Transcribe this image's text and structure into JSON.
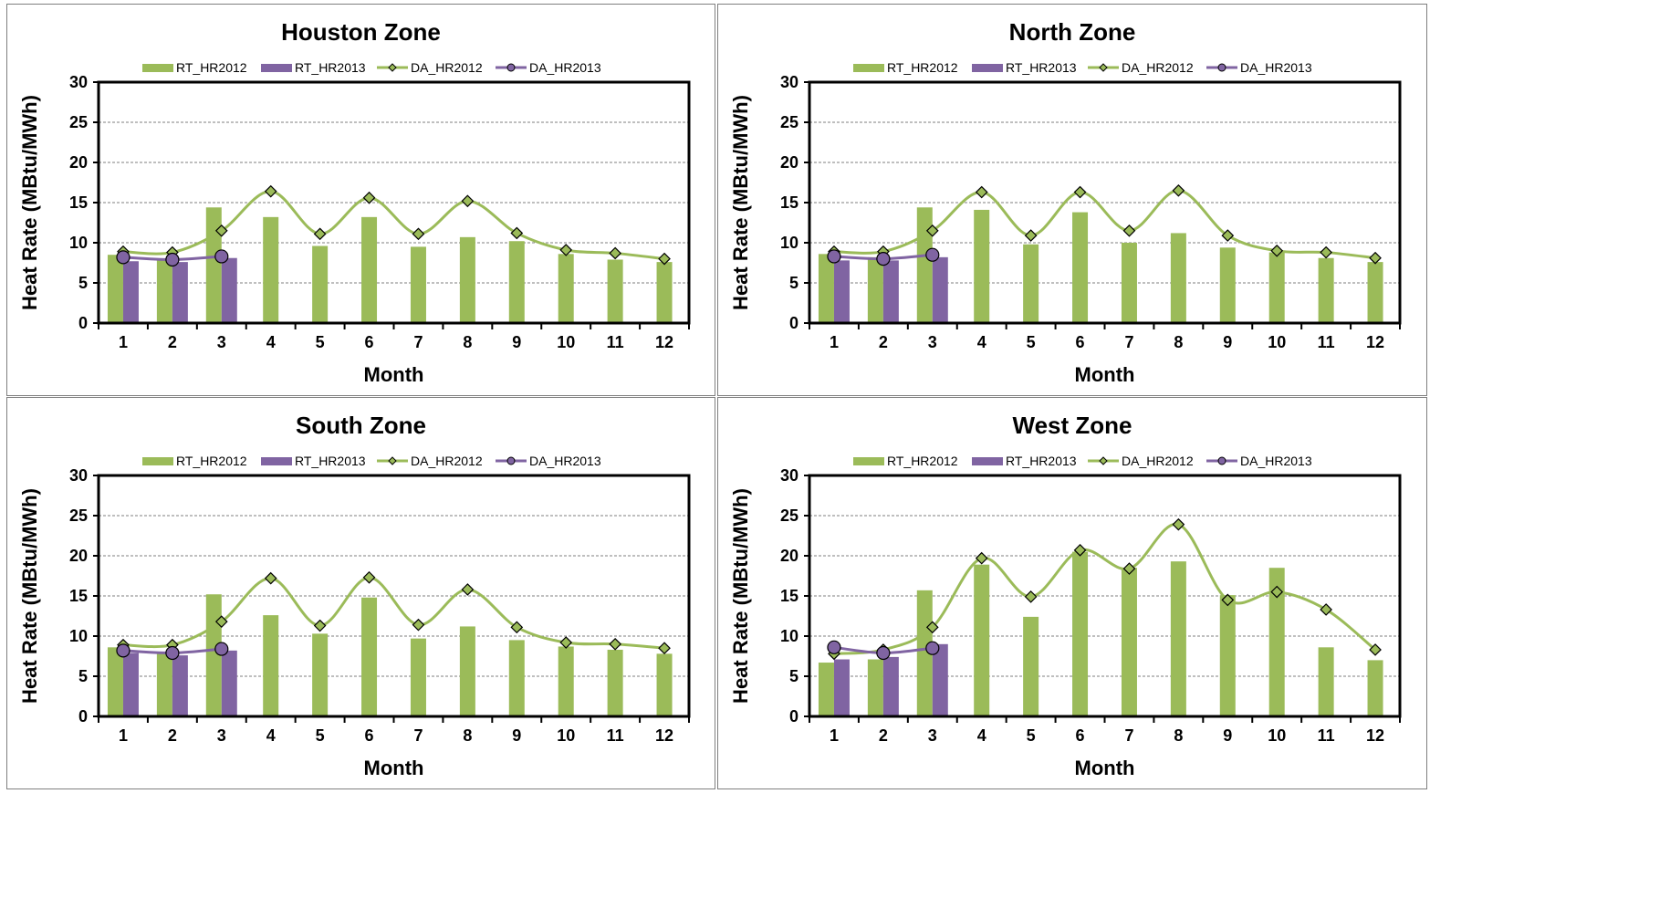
{
  "colors": {
    "green": "#9bbb59",
    "purple": "#8064a2",
    "grid": "#7f7f7f",
    "border": "#7f7f7f"
  },
  "chart_data": [
    {
      "type": "bar",
      "title": "Houston Zone",
      "xlabel": "Month",
      "ylabel": "Heat Rate (MBtu/MWh)",
      "categories": [
        "1",
        "2",
        "3",
        "4",
        "5",
        "6",
        "7",
        "8",
        "9",
        "10",
        "11",
        "12"
      ],
      "ylim": [
        0,
        30
      ],
      "yticks": [
        "0",
        "5",
        "10",
        "15",
        "20",
        "25",
        "30"
      ],
      "grid": "horizontal dashed",
      "legend": "top",
      "series": [
        {
          "name": "RT_HR2012",
          "kind": "bar",
          "values": [
            8.5,
            8.0,
            14.4,
            13.2,
            9.6,
            13.2,
            9.5,
            10.7,
            10.2,
            8.6,
            7.9,
            7.6
          ]
        },
        {
          "name": "RT_HR2013",
          "kind": "bar",
          "values": [
            7.7,
            7.6,
            8.1,
            null,
            null,
            null,
            null,
            null,
            null,
            null,
            null,
            null
          ]
        },
        {
          "name": "DA_HR2012",
          "kind": "line",
          "marker": "diamond",
          "values": [
            8.9,
            8.8,
            11.5,
            16.4,
            11.1,
            15.6,
            11.1,
            15.2,
            11.2,
            9.1,
            8.7,
            8.0
          ]
        },
        {
          "name": "DA_HR2013",
          "kind": "line",
          "marker": "circle",
          "values": [
            8.2,
            7.9,
            8.3,
            null,
            null,
            null,
            null,
            null,
            null,
            null,
            null,
            null
          ]
        }
      ]
    },
    {
      "type": "bar",
      "title": "North Zone",
      "xlabel": "Month",
      "ylabel": "Heat Rate (MBtu/MWh)",
      "categories": [
        "1",
        "2",
        "3",
        "4",
        "5",
        "6",
        "7",
        "8",
        "9",
        "10",
        "11",
        "12"
      ],
      "ylim": [
        0,
        30
      ],
      "yticks": [
        "0",
        "5",
        "10",
        "15",
        "20",
        "25",
        "30"
      ],
      "grid": "horizontal dashed",
      "legend": "top",
      "series": [
        {
          "name": "RT_HR2012",
          "kind": "bar",
          "values": [
            8.6,
            8.2,
            14.4,
            14.1,
            9.8,
            13.8,
            10.0,
            11.2,
            9.4,
            8.8,
            8.1,
            7.6
          ]
        },
        {
          "name": "RT_HR2013",
          "kind": "bar",
          "values": [
            7.8,
            7.8,
            8.2,
            null,
            null,
            null,
            null,
            null,
            null,
            null,
            null,
            null
          ]
        },
        {
          "name": "DA_HR2012",
          "kind": "line",
          "marker": "diamond",
          "values": [
            8.9,
            8.9,
            11.5,
            16.3,
            10.9,
            16.3,
            11.5,
            16.5,
            10.9,
            9.0,
            8.8,
            8.1
          ]
        },
        {
          "name": "DA_HR2013",
          "kind": "line",
          "marker": "circle",
          "values": [
            8.3,
            8.0,
            8.5,
            null,
            null,
            null,
            null,
            null,
            null,
            null,
            null,
            null
          ]
        }
      ]
    },
    {
      "type": "bar",
      "title": "South Zone",
      "xlabel": "Month",
      "ylabel": "Heat Rate (MBtu/MWh)",
      "categories": [
        "1",
        "2",
        "3",
        "4",
        "5",
        "6",
        "7",
        "8",
        "9",
        "10",
        "11",
        "12"
      ],
      "ylim": [
        0,
        30
      ],
      "yticks": [
        "0",
        "5",
        "10",
        "15",
        "20",
        "25",
        "30"
      ],
      "grid": "horizontal dashed",
      "legend": "top",
      "series": [
        {
          "name": "RT_HR2012",
          "kind": "bar",
          "values": [
            8.6,
            8.0,
            15.2,
            12.6,
            10.3,
            14.8,
            9.7,
            11.2,
            9.5,
            8.7,
            8.3,
            7.8
          ]
        },
        {
          "name": "RT_HR2013",
          "kind": "bar",
          "values": [
            7.9,
            7.6,
            8.2,
            null,
            null,
            null,
            null,
            null,
            null,
            null,
            null,
            null
          ]
        },
        {
          "name": "DA_HR2012",
          "kind": "line",
          "marker": "diamond",
          "values": [
            8.9,
            8.9,
            11.8,
            17.2,
            11.3,
            17.3,
            11.4,
            15.8,
            11.1,
            9.2,
            9.0,
            8.5
          ]
        },
        {
          "name": "DA_HR2013",
          "kind": "line",
          "marker": "circle",
          "values": [
            8.2,
            7.9,
            8.4,
            null,
            null,
            null,
            null,
            null,
            null,
            null,
            null,
            null
          ]
        }
      ]
    },
    {
      "type": "bar",
      "title": "West Zone",
      "xlabel": "Month",
      "ylabel": "Heat Rate (MBtu/MWh)",
      "categories": [
        "1",
        "2",
        "3",
        "4",
        "5",
        "6",
        "7",
        "8",
        "9",
        "10",
        "11",
        "12"
      ],
      "ylim": [
        0,
        30
      ],
      "yticks": [
        "0",
        "5",
        "10",
        "15",
        "20",
        "25",
        "30"
      ],
      "grid": "horizontal dashed",
      "legend": "top",
      "series": [
        {
          "name": "RT_HR2012",
          "kind": "bar",
          "values": [
            6.7,
            7.1,
            15.7,
            18.9,
            12.4,
            20.5,
            18.5,
            19.3,
            15.1,
            18.5,
            8.6,
            7.0
          ]
        },
        {
          "name": "RT_HR2013",
          "kind": "bar",
          "values": [
            7.1,
            7.4,
            9.0,
            null,
            null,
            null,
            null,
            null,
            null,
            null,
            null,
            null
          ]
        },
        {
          "name": "DA_HR2012",
          "kind": "line",
          "marker": "diamond",
          "values": [
            7.8,
            8.3,
            11.1,
            19.7,
            14.9,
            20.7,
            18.4,
            23.9,
            14.5,
            15.5,
            13.3,
            8.3
          ]
        },
        {
          "name": "DA_HR2013",
          "kind": "line",
          "marker": "circle",
          "values": [
            8.6,
            7.9,
            8.5,
            null,
            null,
            null,
            null,
            null,
            null,
            null,
            null,
            null
          ]
        }
      ]
    }
  ]
}
